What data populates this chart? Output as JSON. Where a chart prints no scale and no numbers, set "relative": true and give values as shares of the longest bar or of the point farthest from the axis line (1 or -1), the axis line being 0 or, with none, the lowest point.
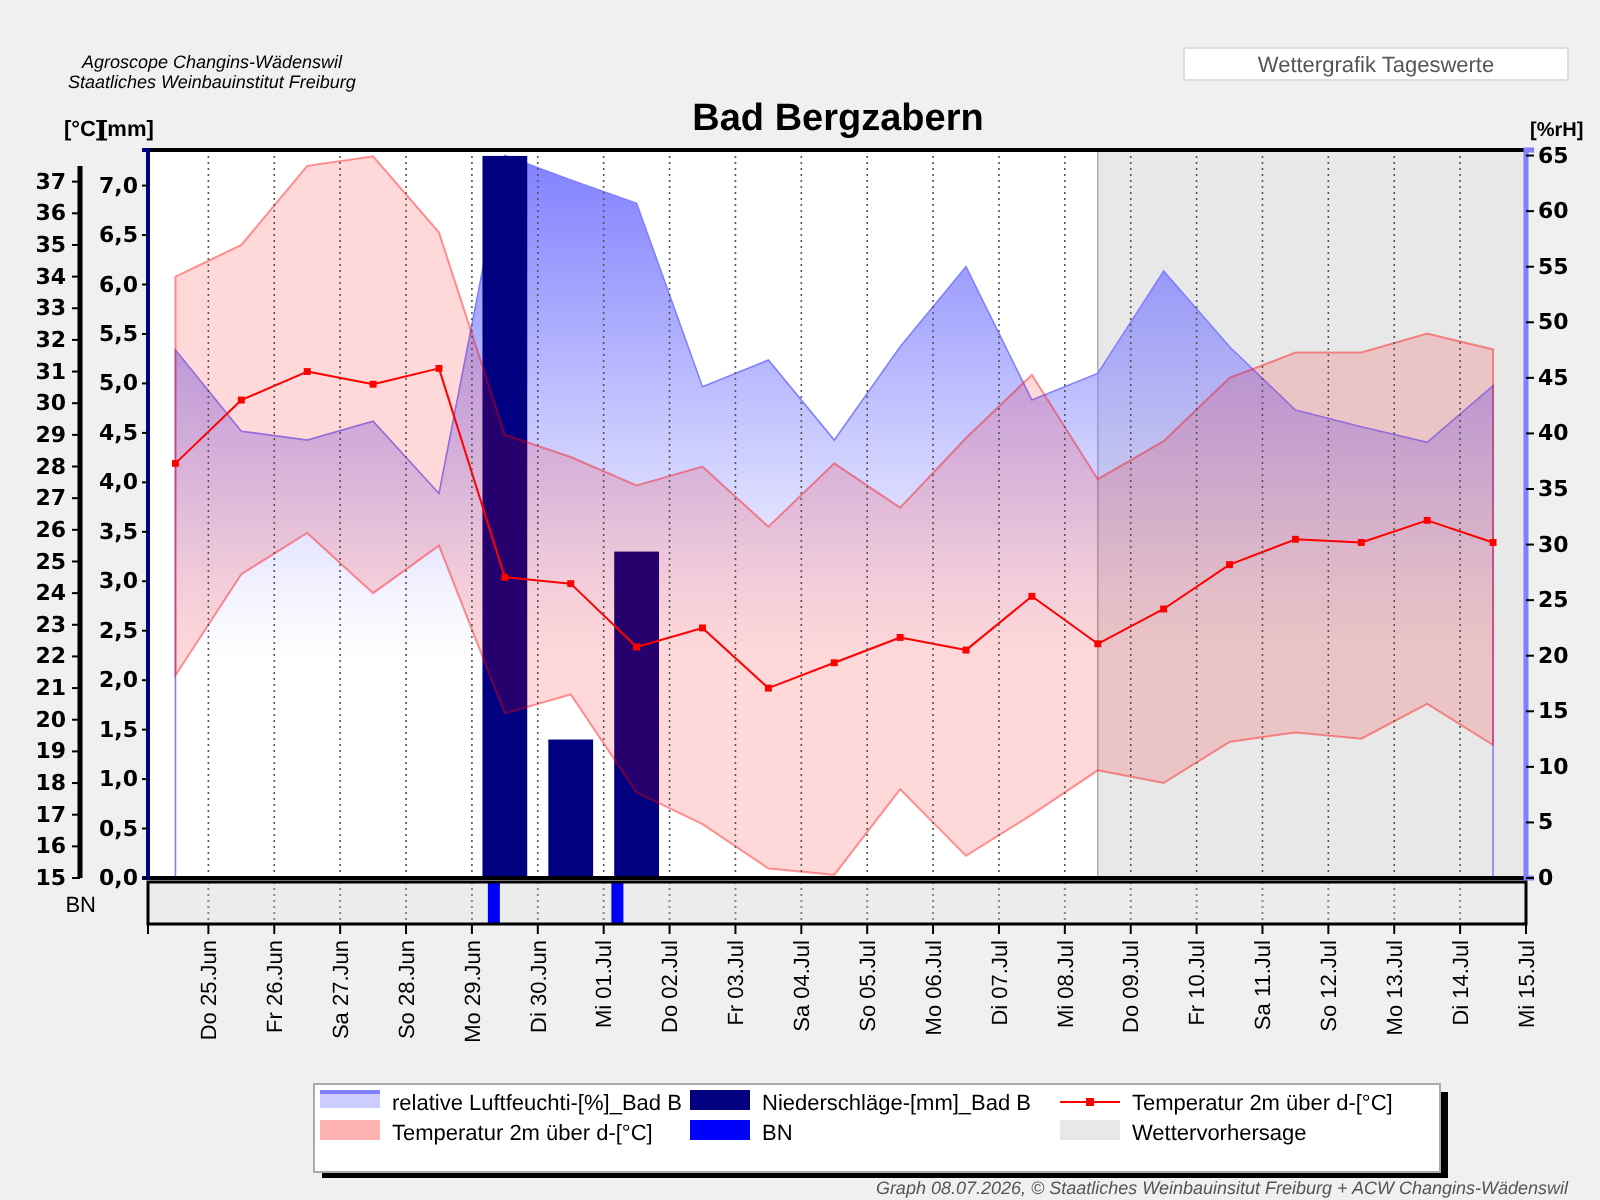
{
  "chart_data": [
    {
      "type": "line",
      "title": "Bad Bergzabern",
      "ylabel": "[°C]",
      "y2label": "[mm]",
      "y3label": "[%rH]",
      "annotations": [
        "Agroscope Changins-Wädenswil",
        "Staatliches Weinbauinstitut Freiburg",
        "Wettergrafik Tageswerte",
        "Graph 08.07.2026, © Staatliches Weinbauinsitut Freiburg + ACW Changins-Wädenswil"
      ],
      "x": [
        "2026-06-24T12:00",
        "2026-06-25T12:00",
        "2026-06-26T12:00",
        "2026-06-27T12:00",
        "2026-06-28T12:00",
        "2026-06-29T12:00",
        "2026-06-30T12:00",
        "2026-07-01T12:00",
        "2026-07-02T12:00",
        "2026-07-03T12:00",
        "2026-07-04T12:00",
        "2026-07-05T12:00",
        "2026-07-06T12:00",
        "2026-07-07T12:00",
        "2026-07-08T12:00",
        "2026-07-09T12:00",
        "2026-07-10T12:00",
        "2026-07-11T12:00",
        "2026-07-12T12:00",
        "2026-07-13T12:00",
        "2026-07-14T12:00"
      ],
      "series": [
        {
          "name": "relative Luftfeuchti-[%]_Bad B",
          "type": "area",
          "axis": "y3",
          "color": "#8080ff",
          "values": [
            47.5,
            40.2,
            39.4,
            41.1,
            34.6,
            65,
            62.8,
            60.7,
            44.2,
            46.6,
            39.4,
            47.8,
            55.0,
            43.0,
            45.4,
            54.6,
            47.8,
            42.1,
            40.6,
            39.2,
            44.3
          ]
        },
        {
          "name": "Niederschläge-[mm]_Bad B",
          "type": "bar",
          "axis": "y2",
          "color": "#000080",
          "x": [
            "2026-06-29T12:00",
            "2026-06-30T12:00",
            "2026-07-01T12:00"
          ],
          "values": [
            7.3,
            1.4,
            3.3
          ]
        },
        {
          "name": "Temperatur 2m über d-[°C]",
          "type": "line",
          "color": "#ff0000",
          "marker": "square",
          "values": [
            28.1,
            30.1,
            31.0,
            30.6,
            31.1,
            24.5,
            24.3,
            22.3,
            22.9,
            21.0,
            21.8,
            22.6,
            22.2,
            23.9,
            22.4,
            23.5,
            24.9,
            25.7,
            25.6,
            26.3,
            25.6
          ],
          "lower": [
            21.4,
            24.6,
            25.9,
            24.0,
            25.5,
            20.2,
            20.8,
            17.7,
            16.7,
            15.3,
            15.1,
            17.8,
            15.7,
            17.0,
            18.4,
            18.0,
            19.3,
            19.6,
            19.4,
            20.5,
            19.2
          ],
          "upper": [
            34.0,
            35.0,
            37.5,
            37.8,
            35.4,
            29.0,
            28.3,
            27.4,
            28.0,
            26.1,
            28.1,
            26.7,
            28.9,
            30.9,
            27.6,
            28.8,
            30.8,
            31.6,
            31.6,
            32.2,
            31.7
          ]
        }
      ],
      "bands": [
        {
          "axis": "x",
          "from": "2026-07-08T12:00",
          "to": "2026-07-15T00:00",
          "label": "Wettervorhersage",
          "color": "#e8e8e8"
        }
      ],
      "xlim": [
        "2026-06-24T02:00",
        "2026-07-15T00:00"
      ],
      "ylim": [
        15,
        38
      ],
      "yticks": [
        15,
        16,
        17,
        18,
        19,
        20,
        21,
        22,
        23,
        24,
        25,
        26,
        27,
        28,
        29,
        30,
        31,
        32,
        33,
        34,
        35,
        36,
        37
      ],
      "y2lim": [
        0,
        7.36
      ],
      "y2ticks": [
        {
          "value": 0,
          "label": "0,0"
        },
        {
          "value": 0.5,
          "label": "0,5"
        },
        {
          "value": 1,
          "label": "1,0"
        },
        {
          "value": 1.5,
          "label": "1,5"
        },
        {
          "value": 2,
          "label": "2,0"
        },
        {
          "value": 2.5,
          "label": "2,5"
        },
        {
          "value": 3,
          "label": "3,0"
        },
        {
          "value": 3.5,
          "label": "3,5"
        },
        {
          "value": 4,
          "label": "4,0"
        },
        {
          "value": 4.5,
          "label": "4,5"
        },
        {
          "value": 5,
          "label": "5,0"
        },
        {
          "value": 5.5,
          "label": "5,5"
        },
        {
          "value": 6,
          "label": "6,0"
        },
        {
          "value": 6.5,
          "label": "6,5"
        },
        {
          "value": 7,
          "label": "7,0"
        }
      ],
      "y3lim": [
        0,
        65.5
      ],
      "y3ticks": [
        0,
        5,
        10,
        15,
        20,
        25,
        30,
        35,
        40,
        45,
        50,
        55,
        60,
        65
      ],
      "grid": "x",
      "legend": "bottom",
      "tick_labels": "y"
    },
    {
      "type": "bar",
      "relative": true,
      "ylabel": "BN",
      "legend": "bottom",
      "grid": "x",
      "xlim": [
        "2026-06-24T02:00",
        "2026-07-15T00:00"
      ],
      "xticks": [
        {
          "value": "2026-06-25",
          "label": "Do 25.Jun"
        },
        {
          "value": "2026-06-26",
          "label": "Fr 26.Jun"
        },
        {
          "value": "2026-06-27",
          "label": "Sa 27.Jun"
        },
        {
          "value": "2026-06-28",
          "label": "So 28.Jun"
        },
        {
          "value": "2026-06-29",
          "label": "Mo 29.Jun"
        },
        {
          "value": "2026-06-30",
          "label": "Di 30.Jun"
        },
        {
          "value": "2026-07-01",
          "label": "Mi 01.Jul"
        },
        {
          "value": "2026-07-02",
          "label": "Do 02.Jul"
        },
        {
          "value": "2026-07-03",
          "label": "Fr 03.Jul"
        },
        {
          "value": "2026-07-04",
          "label": "Sa 04.Jul"
        },
        {
          "value": "2026-07-05",
          "label": "So 05.Jul"
        },
        {
          "value": "2026-07-06",
          "label": "Mo 06.Jul"
        },
        {
          "value": "2026-07-07",
          "label": "Di 07.Jul"
        },
        {
          "value": "2026-07-08",
          "label": "Mi 08.Jul"
        },
        {
          "value": "2026-07-09",
          "label": "Do 09.Jul"
        },
        {
          "value": "2026-07-10",
          "label": "Fr 10.Jul"
        },
        {
          "value": "2026-07-11",
          "label": "Sa 11.Jul"
        },
        {
          "value": "2026-07-12",
          "label": "So 12.Jul"
        },
        {
          "value": "2026-07-13",
          "label": "Mo 13.Jul"
        },
        {
          "value": "2026-07-14",
          "label": "Di 14.Jul"
        },
        {
          "value": "2026-07-15",
          "label": "Mi 15.Jul"
        }
      ],
      "series": [
        {
          "name": "BN",
          "color": "#0000ff",
          "x": [
            "2026-06-29T08:00",
            "2026-07-01T05:00"
          ],
          "values": [
            1,
            1
          ]
        }
      ]
    }
  ]
}
